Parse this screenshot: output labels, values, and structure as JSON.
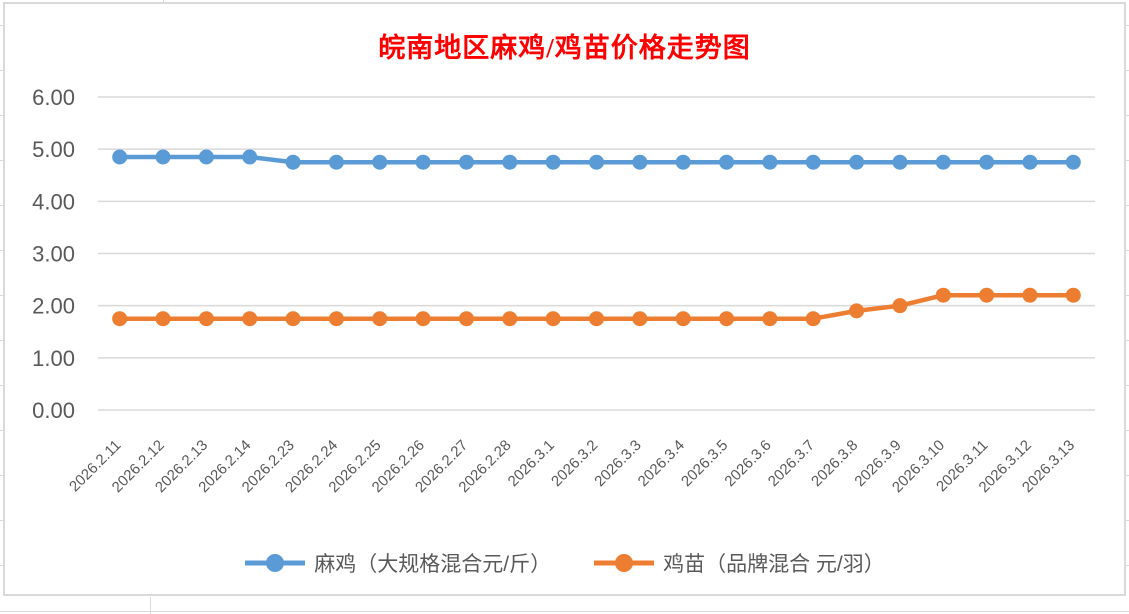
{
  "window": {
    "background": "#FFFFFF",
    "chart_border_color": "#D9D9D9"
  },
  "title": {
    "text": "皖南地区麻鸡/鸡苗价格走势图",
    "color": "#FF0000"
  },
  "chart_data": {
    "type": "line",
    "title": "皖南地区麻鸡/鸡苗价格走势图",
    "categories": [
      "2026.2.11",
      "2026.2.12",
      "2026.2.13",
      "2026.2.14",
      "2026.2.23",
      "2026.2.24",
      "2026.2.25",
      "2026.2.26",
      "2026.2.27",
      "2026.2.28",
      "2026.3.1",
      "2026.3.2",
      "2026.3.3",
      "2026.3.4",
      "2026.3.5",
      "2026.3.6",
      "2026.3.7",
      "2026.3.8",
      "2026.3.9",
      "2026.3.10",
      "2026.3.11",
      "2026.3.12",
      "2026.3.13"
    ],
    "series": [
      {
        "name": "麻鸡（大规格混合元/斤）",
        "color": "#5B9BD5",
        "values": [
          4.85,
          4.85,
          4.85,
          4.85,
          4.75,
          4.75,
          4.75,
          4.75,
          4.75,
          4.75,
          4.75,
          4.75,
          4.75,
          4.75,
          4.75,
          4.75,
          4.75,
          4.75,
          4.75,
          4.75,
          4.75,
          4.75,
          4.75
        ]
      },
      {
        "name": "鸡苗（品牌混合 元/羽）",
        "color": "#ED7D31",
        "values": [
          1.75,
          1.75,
          1.75,
          1.75,
          1.75,
          1.75,
          1.75,
          1.75,
          1.75,
          1.75,
          1.75,
          1.75,
          1.75,
          1.75,
          1.75,
          1.75,
          1.75,
          1.9,
          2.0,
          2.2,
          2.2,
          2.2,
          2.2
        ]
      }
    ],
    "ylim": [
      0,
      6
    ],
    "ytick_step": 1,
    "ytick_labels": [
      "0.00",
      "1.00",
      "2.00",
      "3.00",
      "4.00",
      "5.00",
      "6.00"
    ],
    "grid": true,
    "gridline_color": "#D9D9D9",
    "axis_label_color": "#595959",
    "x_label_rotation": -45,
    "legend_position": "bottom"
  }
}
